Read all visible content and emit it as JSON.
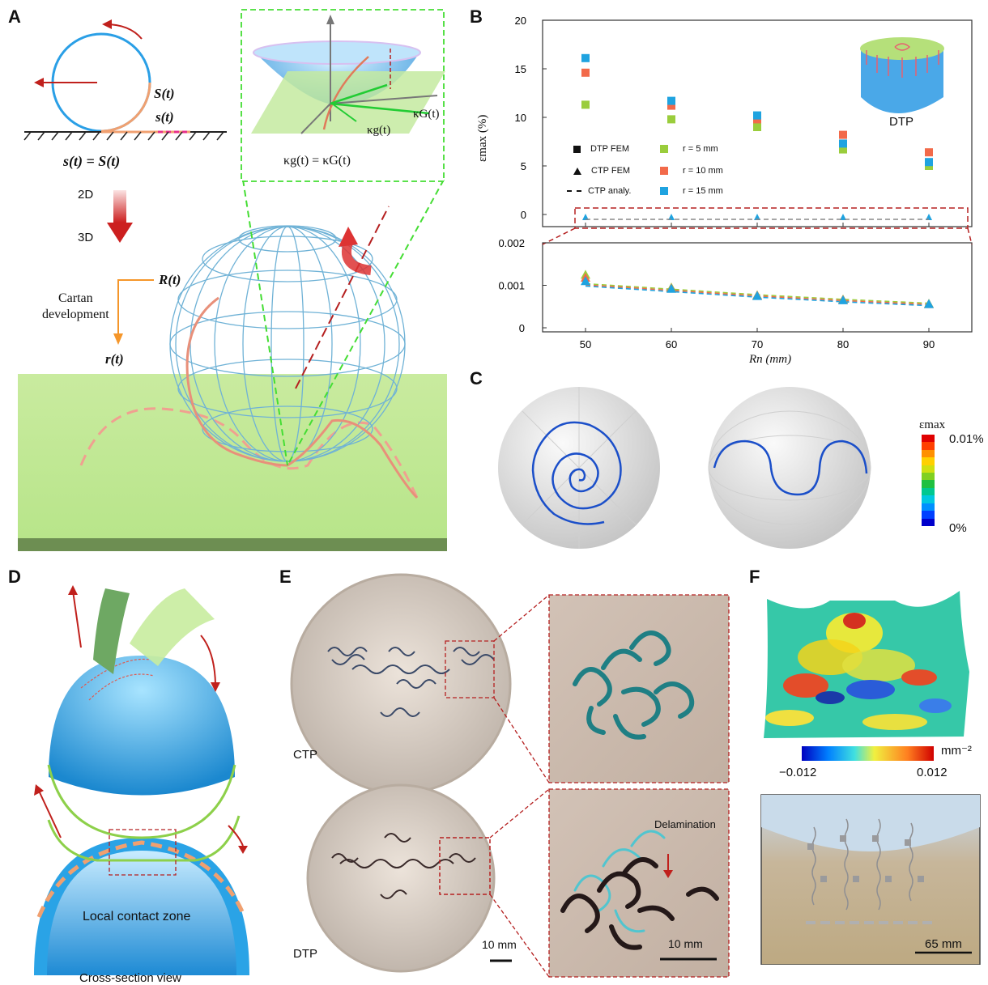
{
  "panels": {
    "a": "A",
    "b": "B",
    "c": "C",
    "d": "D",
    "e": "E",
    "f": "F"
  },
  "panelA": {
    "S_label": "S(t)",
    "s_label": "s(t)",
    "eq1": "s(t) = S(t)",
    "step_2d": "2D",
    "step_3d": "3D",
    "kappa_G": "κG(t)",
    "kappa_g": "κg(t)",
    "eq2": "κg(t) = κG(t)",
    "R_label": "R(t)",
    "cartan": "Cartan",
    "development": "development",
    "r_label": "r(t)"
  },
  "panelB": {
    "ylabel": "εmax (%)",
    "xlabel": "Rn (mm)",
    "inset_label": "DTP",
    "legend": {
      "dtp_fem": "DTP FEM",
      "ctp_fem": "CTP FEM",
      "ctp_analy": "CTP analy.",
      "r5": "r = 5 mm",
      "r10": "r = 10 mm",
      "r15": "r = 15 mm"
    },
    "colors": {
      "r5": "#9acd3c",
      "r10": "#f26a4a",
      "r15": "#1fa3e0"
    }
  },
  "chart_data": {
    "type": "scatter",
    "x": [
      50,
      60,
      70,
      80,
      90
    ],
    "xlabel": "Rn (mm)",
    "ylabel": "εmax (%)",
    "top": {
      "ylim": [
        0,
        20
      ],
      "yticks": [
        0,
        5,
        10,
        15,
        20
      ],
      "series": [
        {
          "name": "r = 5 mm",
          "marker": "square",
          "values": [
            11.3,
            9.8,
            9.0,
            6.7,
            5.0
          ]
        },
        {
          "name": "r = 10 mm",
          "marker": "square",
          "values": [
            14.6,
            11.2,
            9.8,
            8.2,
            6.4
          ]
        },
        {
          "name": "r = 15 mm",
          "marker": "square",
          "values": [
            16.1,
            11.7,
            10.2,
            7.3,
            5.4
          ]
        }
      ]
    },
    "bottom": {
      "ylim": [
        0,
        0.002
      ],
      "yticks": [
        "0",
        "0.001",
        "0.002"
      ],
      "series": [
        {
          "name": "r = 5 mm",
          "marker": "triangle",
          "values": [
            0.00125,
            0.00095,
            0.00077,
            0.00067,
            0.00057
          ]
        },
        {
          "name": "r = 10 mm",
          "marker": "triangle",
          "values": [
            0.00118,
            0.00093,
            0.00076,
            0.00066,
            0.00056
          ]
        },
        {
          "name": "r = 15 mm",
          "marker": "triangle",
          "values": [
            0.0011,
            0.00092,
            0.00075,
            0.00065,
            0.00056
          ]
        }
      ],
      "analytic": [
        0.00101,
        0.00088,
        0.00075,
        0.00064,
        0.00055
      ]
    },
    "xticks": [
      "50",
      "60",
      "70",
      "80",
      "90"
    ]
  },
  "panelC": {
    "colorbar_title": "εmax",
    "colorbar_max": "0.01%",
    "colorbar_min": "0%",
    "colorbar_colors": [
      "#0000cc",
      "#0040ff",
      "#0090ff",
      "#00c8e0",
      "#00c890",
      "#20c040",
      "#80d020",
      "#d0e010",
      "#ffd000",
      "#ff9000",
      "#ff4000",
      "#e00000"
    ]
  },
  "panelD": {
    "contact": "Local contact zone",
    "section": "Cross-section view"
  },
  "panelE": {
    "ctp": "CTP",
    "dtp": "DTP",
    "scale1": "10 mm",
    "scale2": "10 mm",
    "delam": "Delamination"
  },
  "panelF": {
    "unit": "mm⁻²",
    "cmin": "−0.012",
    "cmax": "0.012",
    "scale": "65 mm"
  }
}
